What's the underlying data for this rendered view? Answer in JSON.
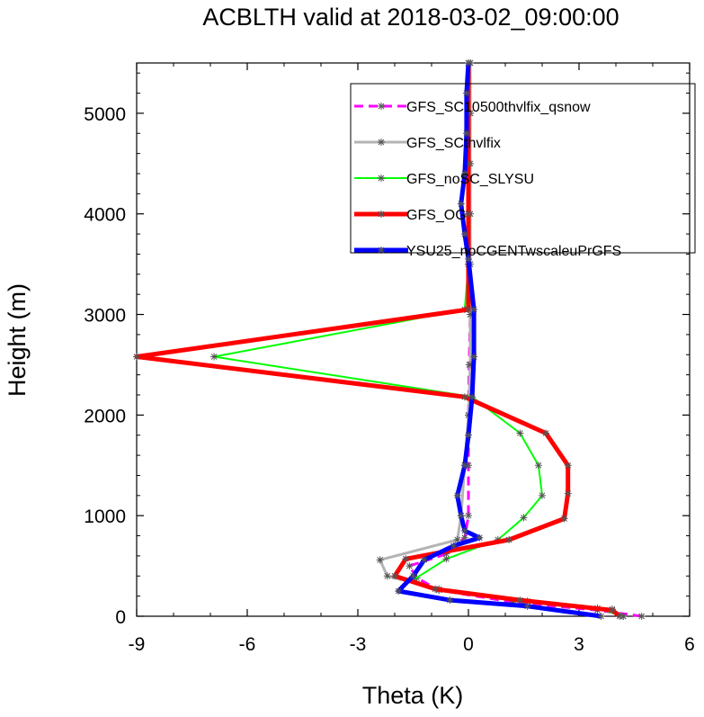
{
  "chart_data": {
    "type": "line",
    "title": "ACBLTH valid at 2018-03-02_09:00:00",
    "xlabel": "Theta (K)",
    "ylabel": "Height (m)",
    "xlim": [
      -9,
      6
    ],
    "ylim": [
      0,
      5500
    ],
    "xticks": [
      -9,
      -6,
      -3,
      0,
      3,
      6
    ],
    "xtick_labels": [
      "-9",
      "-6",
      "-3",
      "0",
      "3",
      "6"
    ],
    "yticks": [
      0,
      1000,
      2000,
      3000,
      4000,
      5000
    ],
    "ytick_labels": [
      "0",
      "1000",
      "2000",
      "3000",
      "4000",
      "5000"
    ],
    "grid": false,
    "legend_position": "top-right",
    "series": [
      {
        "name": "GFS_SC10500thvlfix_qsnow",
        "color": "#ff00ff",
        "dash": "dashed",
        "width": 3,
        "points": [
          [
            4.7,
            0
          ],
          [
            3.5,
            60
          ],
          [
            1.2,
            140
          ],
          [
            -0.8,
            260
          ],
          [
            -1.4,
            380
          ],
          [
            -1.6,
            500
          ],
          [
            -0.6,
            620
          ],
          [
            -0.1,
            780
          ],
          [
            0.0,
            1000
          ],
          [
            0.0,
            1500
          ],
          [
            0.0,
            2000
          ],
          [
            0.02,
            2500
          ],
          [
            0.05,
            3000
          ],
          [
            0.0,
            3500
          ],
          [
            0.0,
            4000
          ],
          [
            0.02,
            4500
          ],
          [
            0.05,
            5000
          ],
          [
            0.05,
            5500
          ]
        ]
      },
      {
        "name": "GFS_SCthvlfix",
        "color": "#b4b4b4",
        "dash": "solid",
        "width": 3,
        "points": [
          [
            4.2,
            0
          ],
          [
            3.9,
            70
          ],
          [
            1.6,
            150
          ],
          [
            -0.8,
            270
          ],
          [
            -2.2,
            400
          ],
          [
            -2.4,
            560
          ],
          [
            -0.3,
            760
          ],
          [
            -0.2,
            1000
          ],
          [
            -0.1,
            1500
          ],
          [
            0.0,
            2000
          ],
          [
            0.05,
            2500
          ],
          [
            0.05,
            3000
          ],
          [
            0.05,
            3500
          ],
          [
            0.05,
            4000
          ],
          [
            0.05,
            4500
          ],
          [
            0.05,
            5000
          ],
          [
            0.05,
            5500
          ]
        ]
      },
      {
        "name": "GFS_noSC_SLYSU",
        "color": "#00ff00",
        "dash": "solid",
        "width": 2,
        "points": [
          [
            4.2,
            0
          ],
          [
            3.5,
            80
          ],
          [
            1.5,
            140
          ],
          [
            -0.8,
            260
          ],
          [
            -1.5,
            360
          ],
          [
            -0.6,
            570
          ],
          [
            0.8,
            760
          ],
          [
            1.5,
            980
          ],
          [
            2.0,
            1200
          ],
          [
            1.9,
            1500
          ],
          [
            1.4,
            1820
          ],
          [
            0.1,
            2180
          ],
          [
            -6.9,
            2580
          ],
          [
            -0.1,
            3050
          ],
          [
            0.0,
            3500
          ],
          [
            0.0,
            4000
          ],
          [
            0.0,
            4500
          ],
          [
            0.0,
            5000
          ],
          [
            0.0,
            5500
          ]
        ]
      },
      {
        "name": "GFS_OG",
        "color": "#ff0000",
        "dash": "solid",
        "width": 5,
        "points": [
          [
            4.1,
            0
          ],
          [
            3.9,
            60
          ],
          [
            1.4,
            160
          ],
          [
            -0.9,
            270
          ],
          [
            -2.0,
            400
          ],
          [
            -1.7,
            570
          ],
          [
            1.1,
            760
          ],
          [
            2.6,
            970
          ],
          [
            2.7,
            1220
          ],
          [
            2.7,
            1500
          ],
          [
            2.1,
            1820
          ],
          [
            -0.1,
            2180
          ],
          [
            -9.0,
            2580
          ],
          [
            0.0,
            3050
          ],
          [
            0.0,
            3500
          ],
          [
            0.0,
            4000
          ],
          [
            0.0,
            4500
          ],
          [
            0.0,
            5000
          ],
          [
            0.0,
            5500
          ]
        ]
      },
      {
        "name": "YSU25_noCGENTwscaleuPrGFS",
        "color": "#0000ff",
        "dash": "solid",
        "width": 5,
        "points": [
          [
            3.6,
            0
          ],
          [
            1.6,
            100
          ],
          [
            -0.5,
            160
          ],
          [
            -1.9,
            250
          ],
          [
            -1.5,
            400
          ],
          [
            -1.2,
            560
          ],
          [
            -0.4,
            700
          ],
          [
            0.3,
            780
          ],
          [
            -0.1,
            850
          ],
          [
            -0.2,
            1000
          ],
          [
            -0.3,
            1200
          ],
          [
            -0.1,
            1500
          ],
          [
            0.0,
            1800
          ],
          [
            0.1,
            2180
          ],
          [
            0.15,
            2580
          ],
          [
            0.15,
            3050
          ],
          [
            0.0,
            3550
          ],
          [
            -0.1,
            3800
          ],
          [
            -0.2,
            4100
          ],
          [
            -0.1,
            4400
          ],
          [
            -0.05,
            4800
          ],
          [
            -0.05,
            5200
          ],
          [
            0.0,
            5500
          ]
        ]
      }
    ]
  }
}
